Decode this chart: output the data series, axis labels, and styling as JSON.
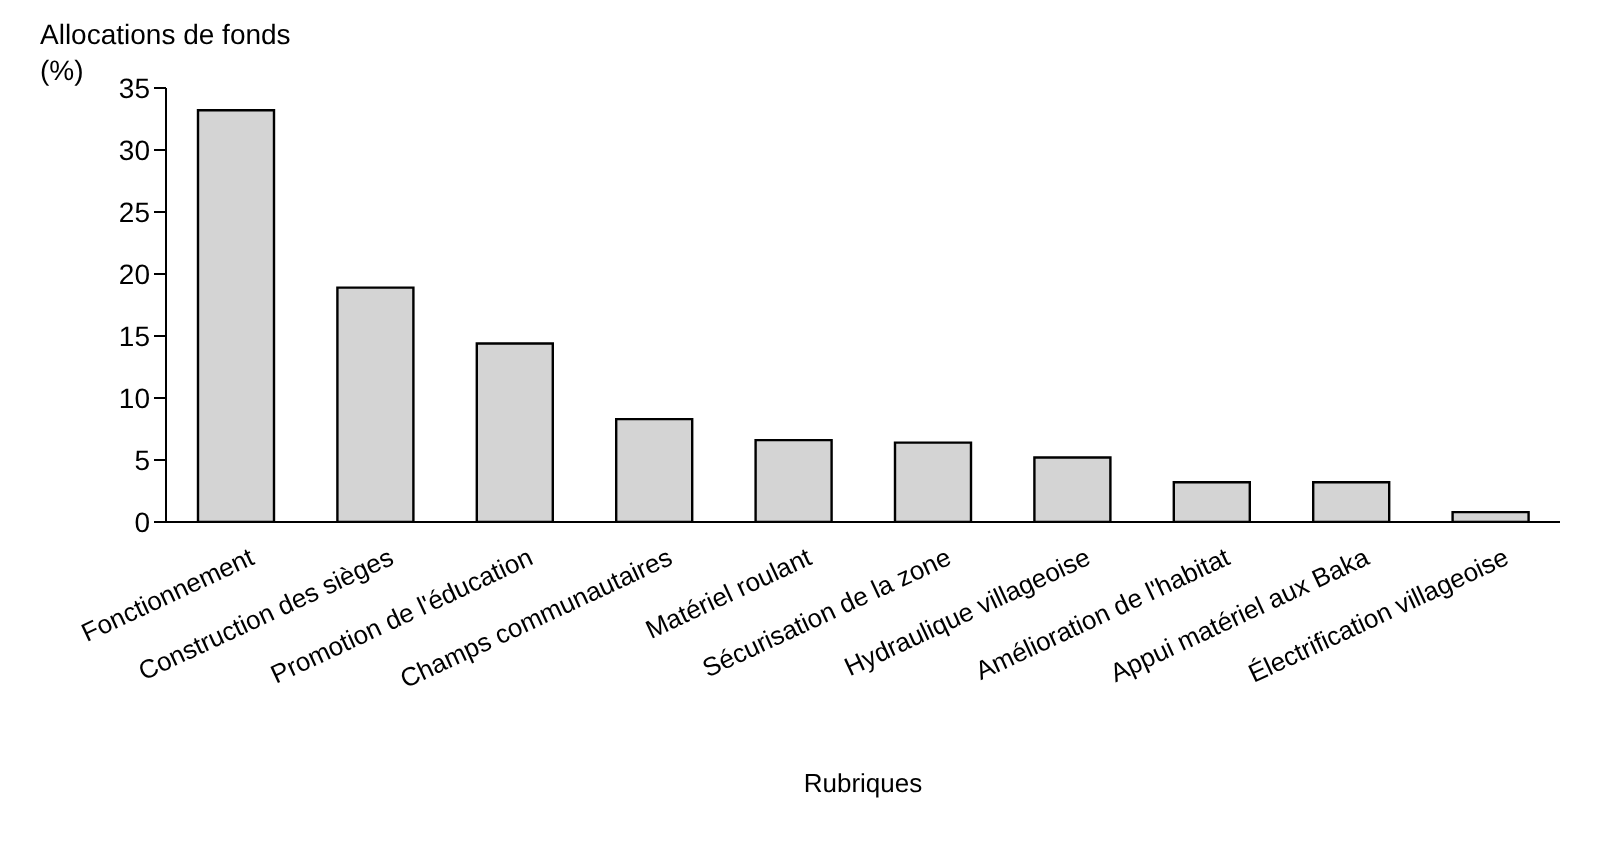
{
  "chart_data": {
    "type": "bar",
    "ylabel": "Allocations de fonds (%)",
    "xlabel": "Rubriques",
    "categories": [
      "Fonctionnement",
      "Construction des sièges",
      "Promotion de l'éducation",
      "Champs communautaires",
      "Matériel roulant",
      "Sécurisation de la zone",
      "Hydraulique villageoise",
      "Amélioration de l'habitat",
      "Appui matériel aux Baka",
      "Électrification villageoise"
    ],
    "values": [
      33.2,
      18.9,
      14.4,
      8.3,
      6.6,
      6.4,
      5.2,
      3.2,
      3.2,
      0.8
    ],
    "color": "#d4d4d4",
    "ylim": [
      0,
      35
    ],
    "yticks": [
      0,
      5,
      10,
      15,
      20,
      25,
      30,
      35
    ],
    "grid": false
  }
}
